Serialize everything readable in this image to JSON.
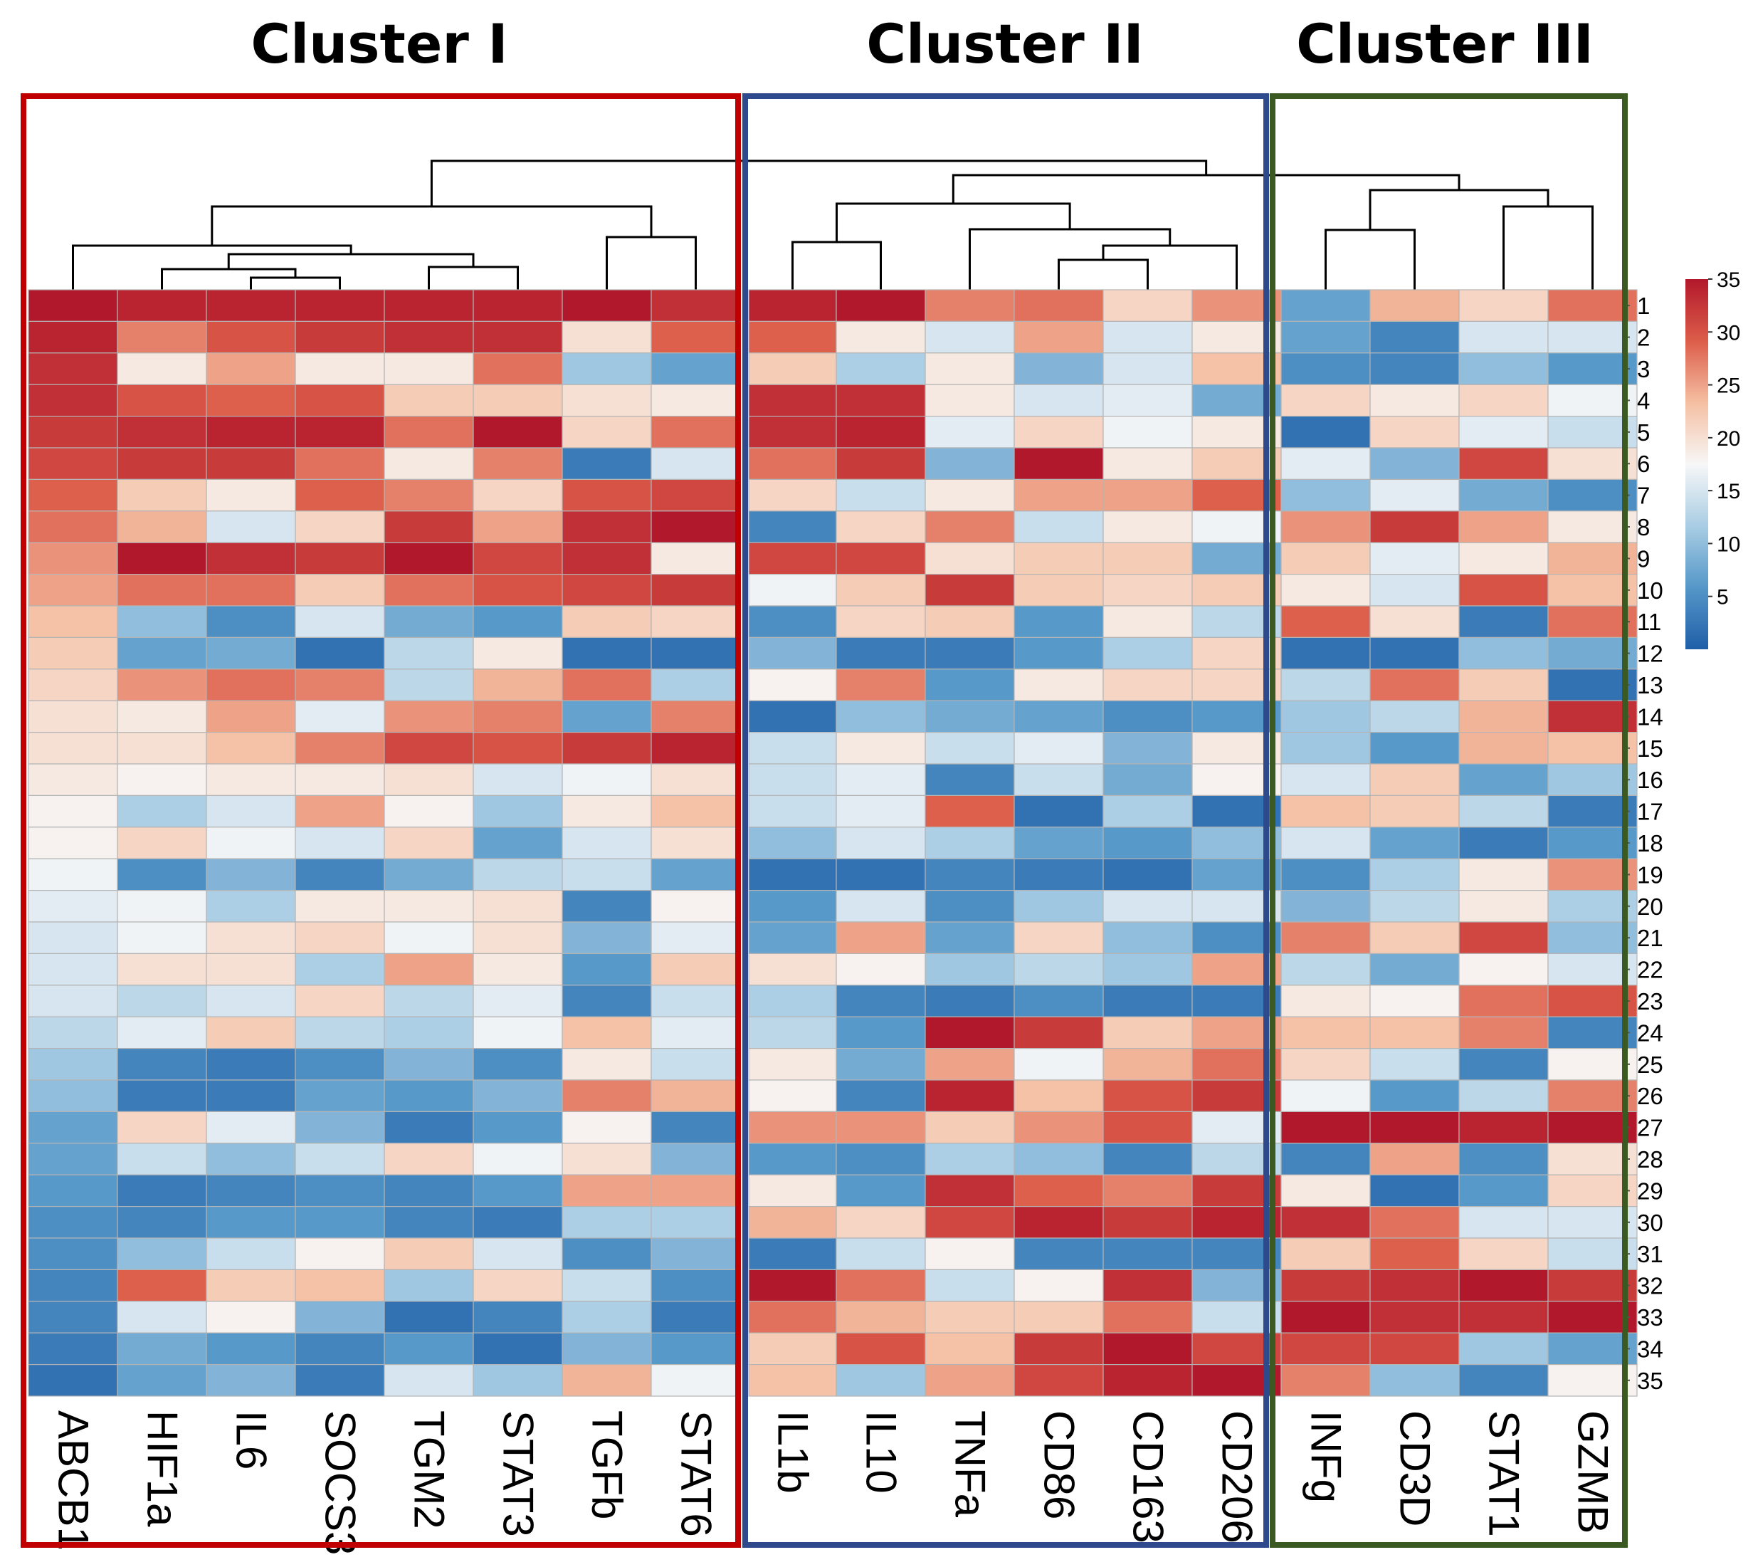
{
  "chart_data": {
    "type": "heatmap",
    "title": "",
    "xlabel": "",
    "ylabel": "",
    "colorscale": {
      "min": 0,
      "max": 35,
      "ticks": [
        "35",
        "30",
        "25",
        "20",
        "15",
        "10",
        "5"
      ],
      "colors": [
        "#1f5fa8",
        "#5597c8",
        "#a9cde4",
        "#f7f7f7",
        "#f5bfa2",
        "#dc5d4a",
        "#b2182b"
      ]
    },
    "clusters": [
      {
        "name": "Cluster I",
        "genes": [
          "ABCB1",
          "HIF1a",
          "IL6",
          "SOCS3",
          "TGM2",
          "STAT3",
          "TGFb",
          "STAT6"
        ],
        "color": "#c00000"
      },
      {
        "name": "Cluster II",
        "genes": [
          "IL1b",
          "IL10",
          "TNFa",
          "CD86",
          "CD163",
          "CD206"
        ],
        "color": "#2e4a8c"
      },
      {
        "name": "Cluster III",
        "genes": [
          "INFg",
          "CD3D",
          "STAT1",
          "GZMB"
        ],
        "color": "#3b5a22"
      }
    ],
    "row_labels": [
      "1",
      "2",
      "3",
      "4",
      "5",
      "6",
      "7",
      "8",
      "9",
      "10",
      "11",
      "12",
      "13",
      "14",
      "15",
      "16",
      "17",
      "18",
      "19",
      "20",
      "21",
      "22",
      "23",
      "24",
      "25",
      "26",
      "27",
      "28",
      "29",
      "30",
      "31",
      "32",
      "33",
      "34",
      "35"
    ],
    "values": [
      [
        35,
        34,
        34,
        34,
        34,
        34,
        35,
        33,
        34,
        35,
        27,
        28,
        21,
        26,
        7,
        24,
        21,
        28
      ],
      [
        34,
        27,
        30,
        32,
        33,
        33,
        20,
        29,
        29,
        19,
        15,
        25,
        15,
        19,
        7,
        4,
        15,
        15
      ],
      [
        33,
        19,
        25,
        19,
        19,
        28,
        11,
        7,
        22,
        12,
        19,
        9,
        15,
        23,
        5,
        4,
        10,
        6
      ],
      [
        33,
        30,
        29,
        30,
        22,
        22,
        20,
        19,
        33,
        33,
        19,
        15,
        16,
        8,
        21,
        19,
        21,
        17
      ],
      [
        32,
        33,
        34,
        34,
        28,
        35,
        21,
        28,
        33,
        34,
        16,
        21,
        17,
        19,
        2,
        21,
        16,
        14
      ],
      [
        31,
        32,
        32,
        28,
        19,
        27,
        3,
        15,
        28,
        32,
        9,
        35,
        19,
        22,
        16,
        9,
        31,
        20
      ],
      [
        29,
        22,
        19,
        29,
        27,
        21,
        30,
        31,
        21,
        14,
        19,
        25,
        25,
        29,
        10,
        16,
        8,
        5
      ],
      [
        28,
        24,
        15,
        21,
        32,
        25,
        33,
        35,
        4,
        21,
        27,
        14,
        19,
        17,
        26,
        32,
        25,
        19
      ],
      [
        26,
        35,
        33,
        32,
        35,
        31,
        33,
        19,
        31,
        31,
        20,
        22,
        22,
        8,
        22,
        16,
        19,
        24
      ],
      [
        25,
        28,
        28,
        22,
        28,
        30,
        31,
        32,
        17,
        22,
        32,
        22,
        21,
        22,
        19,
        15,
        30,
        23
      ],
      [
        23,
        10,
        5,
        15,
        8,
        6,
        22,
        21,
        5,
        21,
        22,
        6,
        19,
        13,
        29,
        20,
        3,
        28
      ],
      [
        22,
        7,
        8,
        2,
        13,
        19,
        2,
        2,
        9,
        3,
        3,
        6,
        12,
        21,
        2,
        2,
        10,
        8
      ],
      [
        21,
        26,
        28,
        27,
        13,
        24,
        28,
        12,
        18,
        27,
        6,
        19,
        21,
        21,
        13,
        28,
        22,
        2
      ],
      [
        20,
        19,
        25,
        16,
        26,
        27,
        7,
        27,
        2,
        10,
        8,
        7,
        5,
        6,
        11,
        13,
        24,
        33
      ],
      [
        20,
        20,
        23,
        27,
        31,
        30,
        32,
        34,
        14,
        19,
        14,
        16,
        9,
        19,
        11,
        6,
        24,
        23
      ],
      [
        19,
        18,
        19,
        19,
        20,
        15,
        17,
        20,
        14,
        16,
        4,
        14,
        8,
        18,
        15,
        22,
        7,
        11
      ],
      [
        18,
        12,
        15,
        25,
        18,
        11,
        19,
        23,
        14,
        16,
        29,
        2,
        12,
        2,
        23,
        22,
        13,
        3
      ],
      [
        18,
        21,
        17,
        15,
        21,
        7,
        15,
        20,
        10,
        15,
        12,
        7,
        6,
        10,
        15,
        7,
        3,
        6
      ],
      [
        17,
        5,
        9,
        4,
        8,
        13,
        14,
        7,
        2,
        2,
        4,
        3,
        2,
        7,
        5,
        12,
        19,
        26
      ],
      [
        16,
        17,
        12,
        19,
        19,
        20,
        4,
        18,
        6,
        15,
        5,
        11,
        15,
        15,
        9,
        13,
        19,
        12
      ],
      [
        15,
        17,
        20,
        21,
        17,
        20,
        9,
        16,
        7,
        25,
        7,
        21,
        10,
        5,
        27,
        22,
        31,
        10
      ],
      [
        15,
        20,
        20,
        12,
        25,
        19,
        6,
        22,
        20,
        18,
        11,
        13,
        11,
        25,
        13,
        8,
        18,
        15
      ],
      [
        15,
        13,
        15,
        21,
        13,
        16,
        4,
        14,
        12,
        4,
        3,
        5,
        3,
        3,
        19,
        18,
        28,
        30
      ],
      [
        13,
        16,
        22,
        13,
        12,
        17,
        23,
        16,
        13,
        6,
        35,
        32,
        22,
        25,
        23,
        23,
        27,
        4
      ],
      [
        11,
        4,
        3,
        5,
        9,
        5,
        19,
        14,
        19,
        8,
        25,
        17,
        24,
        28,
        21,
        14,
        4,
        18
      ],
      [
        10,
        3,
        3,
        7,
        6,
        9,
        27,
        24,
        18,
        4,
        34,
        23,
        30,
        32,
        17,
        6,
        13,
        27
      ],
      [
        7,
        21,
        16,
        9,
        3,
        6,
        18,
        4,
        26,
        26,
        22,
        26,
        30,
        16,
        35,
        35,
        34,
        35
      ],
      [
        7,
        14,
        10,
        14,
        21,
        17,
        20,
        9,
        6,
        5,
        12,
        10,
        4,
        13,
        4,
        25,
        5,
        20
      ],
      [
        6,
        3,
        4,
        5,
        4,
        6,
        25,
        25,
        19,
        6,
        33,
        29,
        27,
        32,
        19,
        2,
        6,
        21
      ],
      [
        5,
        4,
        6,
        6,
        4,
        3,
        12,
        12,
        24,
        21,
        31,
        34,
        32,
        34,
        33,
        28,
        15,
        15
      ],
      [
        5,
        10,
        14,
        18,
        22,
        15,
        5,
        9,
        3,
        14,
        18,
        4,
        4,
        4,
        22,
        29,
        21,
        14
      ],
      [
        4,
        29,
        22,
        23,
        11,
        21,
        14,
        5,
        35,
        28,
        14,
        18,
        33,
        9,
        32,
        33,
        35,
        32
      ],
      [
        4,
        15,
        18,
        9,
        2,
        4,
        12,
        3,
        28,
        24,
        22,
        22,
        28,
        14,
        35,
        33,
        33,
        35
      ],
      [
        3,
        8,
        6,
        4,
        6,
        2,
        9,
        6,
        22,
        30,
        23,
        32,
        35,
        31,
        31,
        31,
        11,
        7
      ],
      [
        2,
        7,
        9,
        3,
        15,
        11,
        24,
        17,
        23,
        11,
        25,
        31,
        34,
        35,
        27,
        10,
        4,
        18
      ]
    ]
  }
}
